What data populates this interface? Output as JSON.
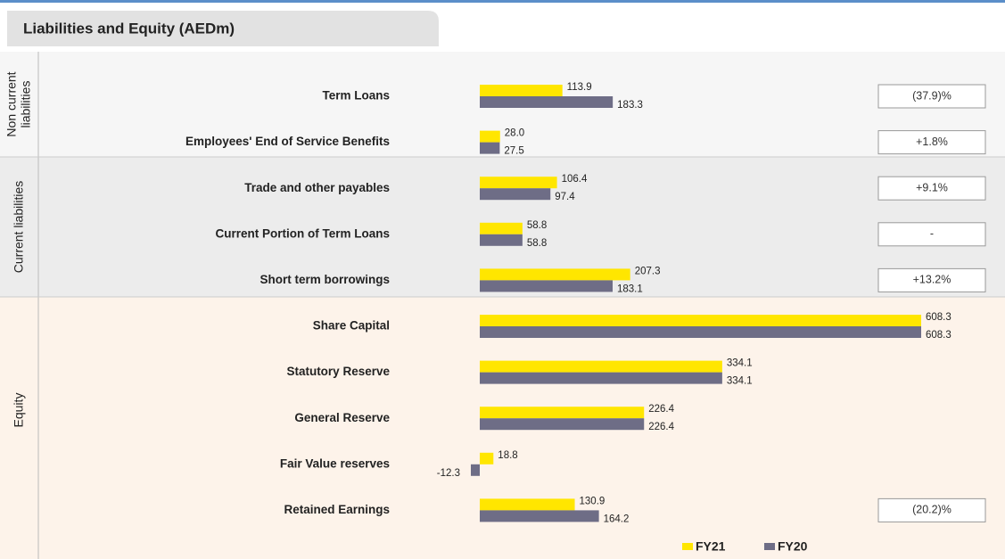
{
  "chart_data": {
    "type": "bar",
    "orientation": "horizontal",
    "title": "Liabilities and Equity (AEDm)",
    "categories": [
      "Term Loans",
      "Employees'  End of Service Benefits",
      "Trade and other payables",
      "Current Portion of Term Loans",
      "Short term borrowings",
      "Share Capital",
      "Statutory Reserve",
      "General Reserve",
      "Fair Value reserves",
      "Retained Earnings"
    ],
    "series": [
      {
        "name": "FY21",
        "color": "#ffe600",
        "values": [
          113.9,
          28.0,
          106.4,
          58.8,
          207.3,
          608.3,
          334.1,
          226.4,
          18.8,
          130.9
        ],
        "value_labels": [
          "113.9",
          "28.0",
          "106.4",
          "58.8",
          "207.3",
          "608.3",
          "334.1",
          "226.4",
          "18.8",
          "130.9"
        ]
      },
      {
        "name": "FY20",
        "color": "#6e6d86",
        "values": [
          183.3,
          27.5,
          97.4,
          58.8,
          183.1,
          608.3,
          334.1,
          226.4,
          -12.3,
          164.2
        ],
        "value_labels": [
          "183.3",
          "27.5",
          "97.4",
          "58.8",
          "183.1",
          "608.3",
          "334.1",
          "226.4",
          "-12.3",
          "164.2"
        ]
      }
    ],
    "groups": [
      {
        "label": [
          "Non current",
          "liabilities"
        ]
      },
      {
        "label": [
          "Current liabilities"
        ]
      },
      {
        "label": [
          "Equity"
        ]
      }
    ],
    "changes": [
      "(37.9)%",
      "+1.8%",
      "+9.1%",
      "-",
      "+13.2%",
      null,
      null,
      null,
      null,
      "(20.2)%"
    ]
  }
}
